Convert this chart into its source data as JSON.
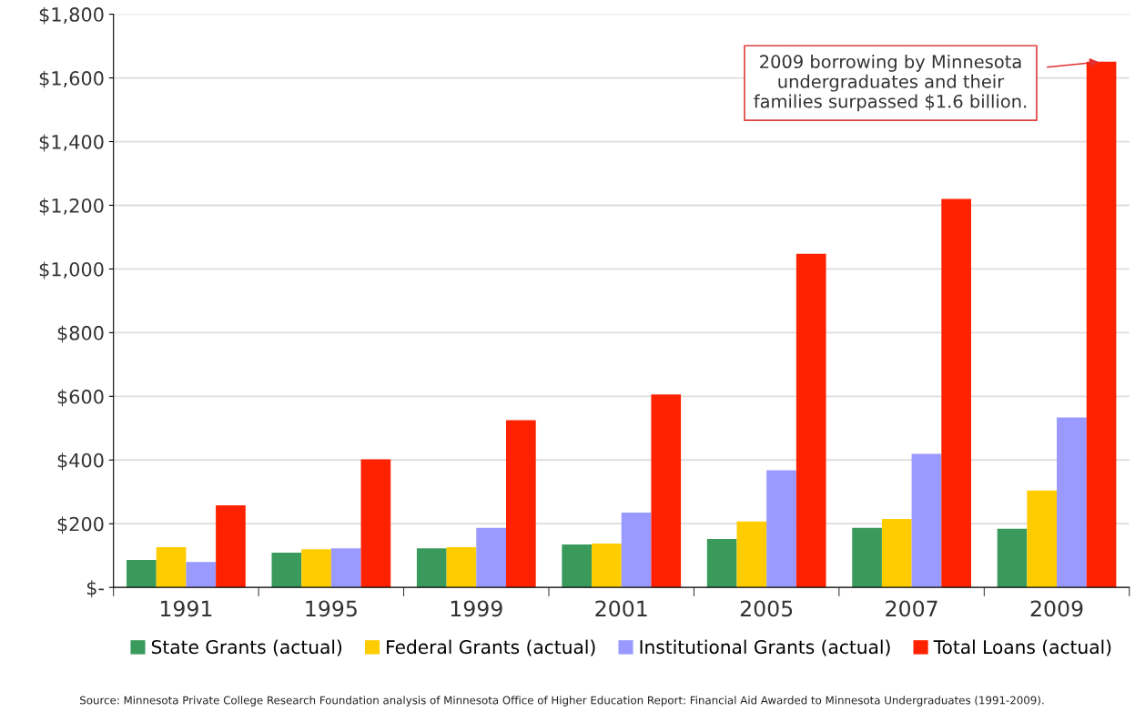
{
  "chart_data": {
    "type": "bar",
    "categories": [
      "1991",
      "1995",
      "1999",
      "2001",
      "2005",
      "2007",
      "2009"
    ],
    "series": [
      {
        "name": "State Grants (actual)",
        "color": "#3a9a5c",
        "values": [
          86,
          109,
          123,
          135,
          152,
          187,
          184
        ]
      },
      {
        "name": "Federal Grants (actual)",
        "color": "#ffcc00",
        "values": [
          126,
          120,
          126,
          138,
          207,
          215,
          304
        ]
      },
      {
        "name": "Institutional Grants (actual)",
        "color": "#9999ff",
        "values": [
          80,
          123,
          187,
          235,
          368,
          419,
          534
        ]
      },
      {
        "name": "Total Loans (actual)",
        "color": "#ff2200",
        "values": [
          258,
          402,
          525,
          606,
          1048,
          1220,
          1651
        ]
      }
    ],
    "ylim": [
      0,
      1800
    ],
    "yticks": [
      {
        "value": 0,
        "label": "$-"
      },
      {
        "value": 200,
        "label": "$200"
      },
      {
        "value": 400,
        "label": "$400"
      },
      {
        "value": 600,
        "label": "$600"
      },
      {
        "value": 800,
        "label": "$800"
      },
      {
        "value": 1000,
        "label": "$1,000"
      },
      {
        "value": 1200,
        "label": "$1,200"
      },
      {
        "value": 1400,
        "label": "$1,400"
      },
      {
        "value": 1600,
        "label": "$1,600"
      },
      {
        "value": 1800,
        "label": "$1,800"
      }
    ],
    "grid": "y",
    "legend": "bottom",
    "annotations": [
      "2009 borrowing by Minnesota\nundergraduates and their\nfamilies surpassed $1.6 billion.",
      "Source: Minnesota Private College Research Foundation analysis of Minnesota Office of Higher Education Report: Financial Aid Awarded to Minnesota Undergraduates (1991-2009)."
    ]
  }
}
